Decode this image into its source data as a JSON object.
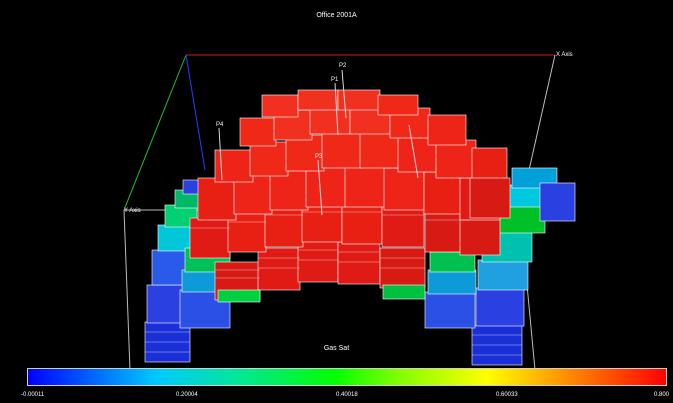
{
  "title": "Office 2001A",
  "axes": {
    "x_label": "X Axis",
    "y_label": "Y Axis"
  },
  "wells": [
    "P1",
    "P2",
    "P3",
    "P4"
  ],
  "colorbar": {
    "label": "Gas Sat",
    "ticks": [
      "-0.00011",
      "0.20004",
      "0.40018",
      "0.60033",
      "0.800"
    ]
  },
  "colors": {
    "background": "#000000",
    "high": "#ff0000",
    "mid": "#00ff00",
    "low": "#0000ff"
  }
}
